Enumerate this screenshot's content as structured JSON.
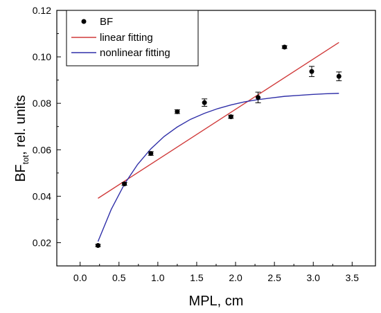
{
  "chart_data": {
    "type": "scatter",
    "xlabel": "MPL, cm",
    "ylabel_main": "BF",
    "ylabel_sub": "tot",
    "ylabel_rest": ", rel. units",
    "xlim": [
      -0.3,
      3.8
    ],
    "ylim": [
      0.01,
      0.12
    ],
    "x_ticks": [
      0.0,
      0.5,
      1.0,
      1.5,
      2.0,
      2.5,
      3.0,
      3.5
    ],
    "x_tick_labels": [
      "0.0",
      "0.5",
      "1.0",
      "1.5",
      "2.0",
      "2.5",
      "3.0",
      "3.5"
    ],
    "y_ticks": [
      0.02,
      0.04,
      0.06,
      0.08,
      0.1,
      0.12
    ],
    "y_tick_labels": [
      "0.02",
      "0.04",
      "0.06",
      "0.08",
      "0.10",
      "0.12"
    ],
    "grid": false,
    "legend_position": "top-left",
    "series": [
      {
        "name": "BF",
        "kind": "points",
        "color": "#000000",
        "x": [
          0.23,
          0.57,
          0.91,
          1.25,
          1.6,
          1.94,
          2.29,
          2.63,
          2.98,
          3.33
        ],
        "y": [
          0.0188,
          0.0453,
          0.0584,
          0.0764,
          0.0803,
          0.0742,
          0.0825,
          0.1042,
          0.0937,
          0.0916
        ],
        "err": [
          0.0005,
          0.0006,
          0.0008,
          0.0008,
          0.0016,
          0.0007,
          0.0023,
          0.0006,
          0.0022,
          0.0019
        ]
      },
      {
        "name": "linear fitting",
        "kind": "line",
        "color": "#d03a3a",
        "x": [
          0.23,
          3.33
        ],
        "y": [
          0.0391,
          0.1062
        ]
      },
      {
        "name": "nonlinear fitting",
        "kind": "line",
        "color": "#2f2fa8",
        "x": [
          0.23,
          0.4,
          0.57,
          0.74,
          0.91,
          1.08,
          1.25,
          1.42,
          1.6,
          1.77,
          1.94,
          2.11,
          2.29,
          2.46,
          2.63,
          2.8,
          2.98,
          3.15,
          3.33
        ],
        "y": [
          0.0205,
          0.0343,
          0.0452,
          0.0537,
          0.0604,
          0.0657,
          0.0698,
          0.0731,
          0.0757,
          0.0777,
          0.0793,
          0.0806,
          0.0816,
          0.0823,
          0.083,
          0.0834,
          0.0838,
          0.0841,
          0.0843
        ]
      }
    ]
  }
}
